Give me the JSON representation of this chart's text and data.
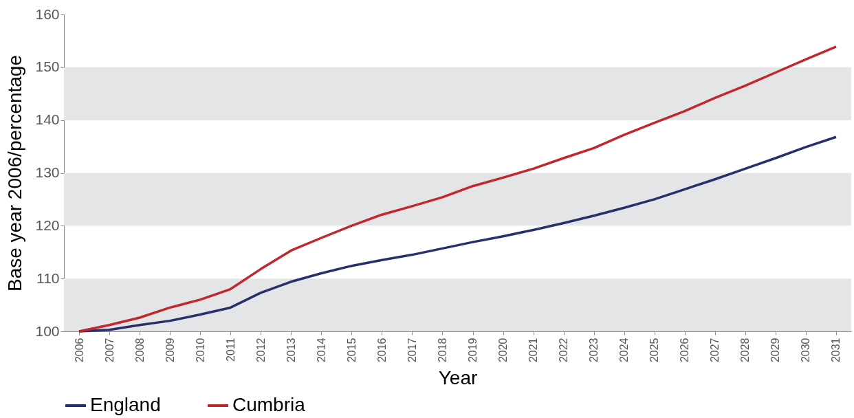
{
  "chart_data": {
    "type": "line",
    "xlabel": "Year",
    "ylabel": "Base year 2006/percentage",
    "categories": [
      "2006",
      "2007",
      "2008",
      "2009",
      "2010",
      "2011",
      "2012",
      "2013",
      "2014",
      "2015",
      "2016",
      "2017",
      "2018",
      "2019",
      "2020",
      "2021",
      "2022",
      "2023",
      "2024",
      "2025",
      "2026",
      "2027",
      "2028",
      "2029",
      "2030",
      "2031"
    ],
    "series": [
      {
        "name": "England",
        "color": "#27306b",
        "values": [
          100,
          100.3,
          101.2,
          102,
          103.2,
          104.5,
          107.3,
          109.4,
          111,
          112.4,
          113.5,
          114.5,
          115.7,
          116.9,
          118,
          119.2,
          120.5,
          121.9,
          123.4,
          125,
          126.9,
          128.8,
          130.8,
          132.8,
          134.9,
          136.8
        ]
      },
      {
        "name": "Cumbria",
        "color": "#c1272d",
        "values": [
          100,
          101.2,
          102.6,
          104.5,
          106,
          108,
          111.8,
          115.3,
          117.7,
          120,
          122.1,
          123.7,
          125.4,
          127.5,
          129.1,
          130.8,
          132.8,
          134.7,
          137.2,
          139.5,
          141.7,
          144.2,
          146.5,
          149,
          151.5,
          153.9
        ]
      }
    ],
    "ylim": [
      100,
      160
    ],
    "yticks": [
      100,
      110,
      120,
      130,
      140,
      150,
      160
    ],
    "bands": [
      {
        "axis": "y",
        "from": 100,
        "to": 110,
        "color": "#e4e5e7"
      },
      {
        "axis": "y",
        "from": 120,
        "to": 130,
        "color": "#e4e5e7"
      },
      {
        "axis": "y",
        "from": 140,
        "to": 150,
        "color": "#e4e5e7"
      }
    ],
    "legend": "bottom",
    "marker": "none",
    "line_style": "solid"
  }
}
